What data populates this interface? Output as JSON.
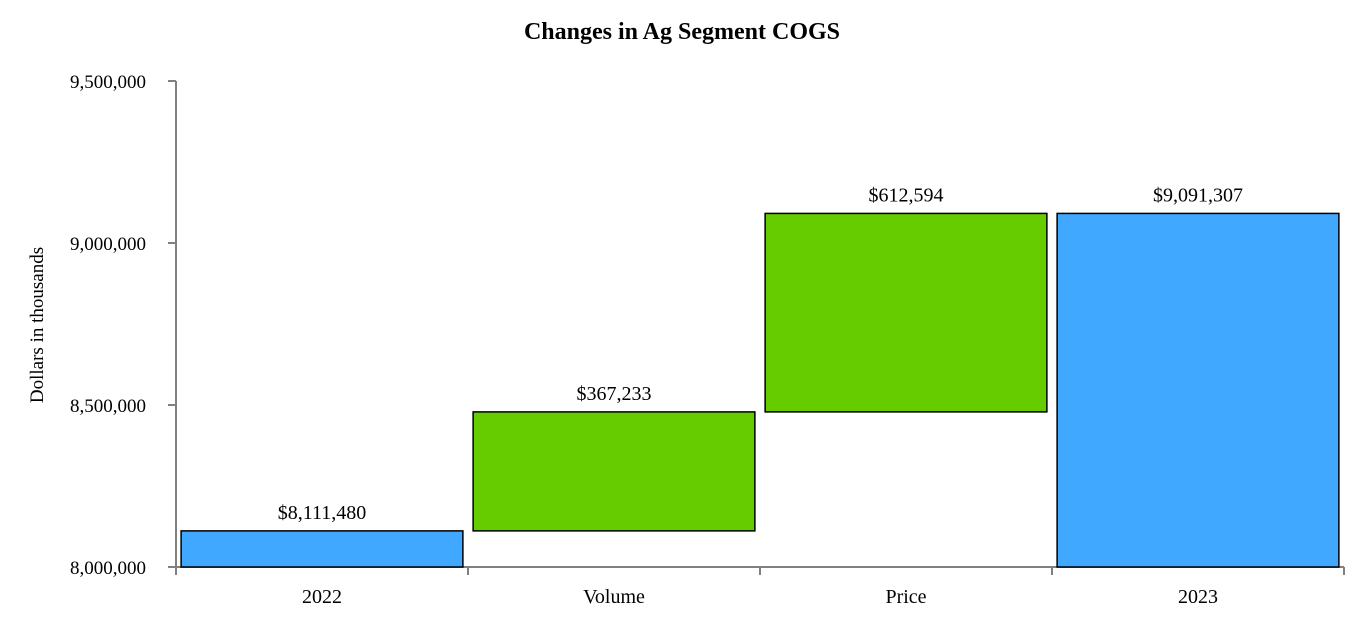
{
  "chart_data": {
    "type": "waterfall",
    "title": "Changes in Ag Segment COGS",
    "xlabel": "",
    "ylabel": "Dollars in thousands",
    "ylim": [
      8000000,
      9500000
    ],
    "yticks": [
      8000000,
      8500000,
      9000000,
      9500000
    ],
    "ytick_labels": [
      "8,000,000",
      "8,500,000",
      "9,000,000",
      "9,500,000"
    ],
    "categories": [
      "2022",
      "Volume",
      "Price",
      "2023"
    ],
    "bars": [
      {
        "category": "2022",
        "kind": "total",
        "start": 8000000,
        "end": 8111480,
        "label": "$8,111,480",
        "color": "#40A9FF"
      },
      {
        "category": "Volume",
        "kind": "increase",
        "start": 8111480,
        "end": 8478713,
        "label": "$367,233",
        "color": "#66CC00"
      },
      {
        "category": "Price",
        "kind": "increase",
        "start": 8478713,
        "end": 9091307,
        "label": "$612,594",
        "color": "#66CC00"
      },
      {
        "category": "2023",
        "kind": "total",
        "start": 8000000,
        "end": 9091307,
        "label": "$9,091,307",
        "color": "#40A9FF"
      }
    ],
    "grid": false,
    "legend": "none"
  }
}
